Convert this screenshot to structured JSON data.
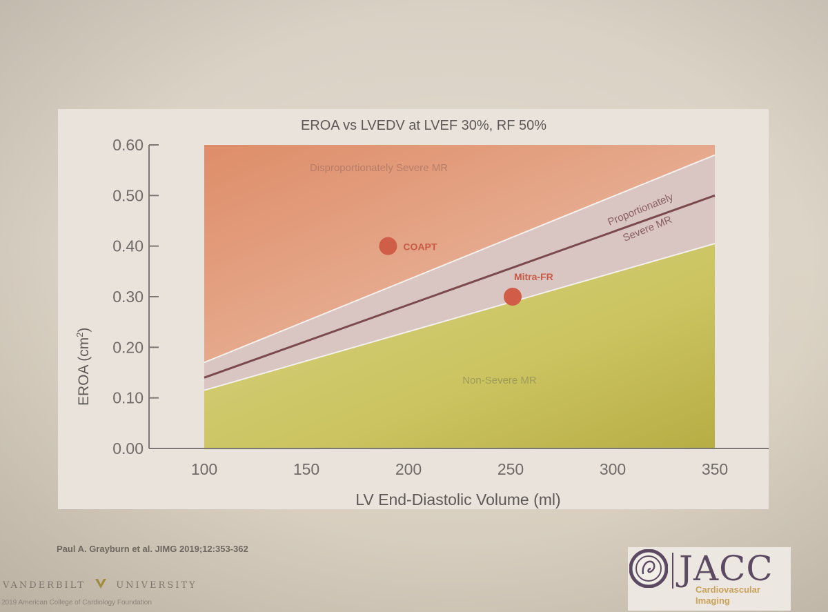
{
  "chart_data": {
    "type": "line",
    "title": "EROA vs LVEDV at LVEF 30%, RF 50%",
    "xlabel": "LV End-Diastolic Volume (ml)",
    "ylabel": "EROA (cm",
    "ylabel_sup": "2",
    "ylabel_close": ")",
    "xlim": [
      100,
      350
    ],
    "ylim": [
      0.0,
      0.6
    ],
    "x_ticks": [
      "100",
      "150",
      "200",
      "250",
      "300",
      "350"
    ],
    "y_ticks": [
      "0.00",
      "0.10",
      "0.20",
      "0.30",
      "0.40",
      "0.50",
      "0.60"
    ],
    "regions": [
      {
        "name": "Disproportionately Severe MR",
        "color": "#e0956f"
      },
      {
        "name": "Proportionately",
        "name_line2": "Severe MR",
        "color": "#d9c5c2"
      },
      {
        "name": "Non-Severe MR",
        "color": "#c9c46a"
      }
    ],
    "series": [
      {
        "x": [
          100,
          350
        ],
        "y": [
          0.14,
          0.5
        ],
        "color": "#7a4a4c"
      }
    ],
    "band_upper": {
      "x": [
        100,
        350
      ],
      "y": [
        0.17,
        0.58
      ]
    },
    "band_lower": {
      "x": [
        100,
        350
      ],
      "y": [
        0.115,
        0.405
      ]
    },
    "points": [
      {
        "label": "COAPT",
        "x": 190,
        "y": 0.4,
        "color": "#cf5d47"
      },
      {
        "label": "Mitra-FR",
        "x": 251,
        "y": 0.3,
        "color": "#cf5d47"
      }
    ]
  },
  "footer": {
    "citation": "Paul A. Grayburn et al. JIMG 2019;12:353-362",
    "university": "VANDERBILT",
    "university_2": "UNIVERSITY",
    "copyright": "2019 American College of Cardiology Foundation"
  },
  "logo": {
    "word": "JACC",
    "sub_1": "Cardiovascular",
    "sub_2": "Imaging"
  }
}
